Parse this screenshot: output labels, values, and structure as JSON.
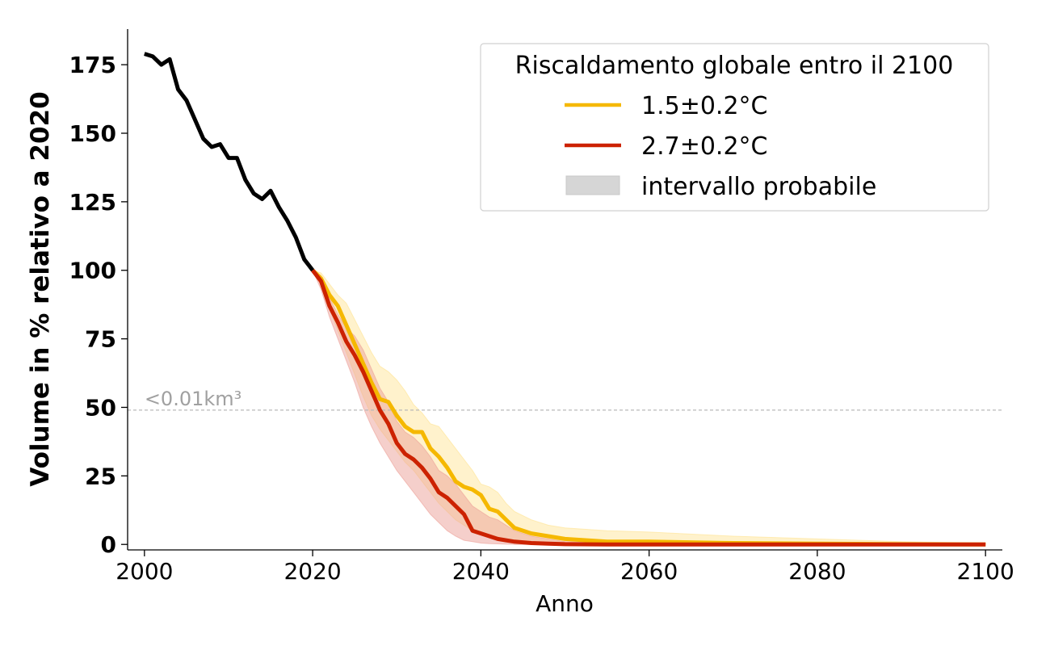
{
  "chart_data": {
    "type": "line",
    "title": "",
    "xlabel": "Anno",
    "ylabel": "Volume in % relativo a 2020",
    "xlim": [
      1998,
      2102
    ],
    "ylim": [
      -2,
      188
    ],
    "xticks": [
      2000,
      2020,
      2040,
      2060,
      2080,
      2100
    ],
    "yticks": [
      0,
      25,
      50,
      75,
      100,
      125,
      150,
      175
    ],
    "grid": false,
    "legend": {
      "title": "Riscaldamento globale entro il 2100",
      "placement": "top-right",
      "entries": [
        {
          "label": "1.5±0.2°C",
          "kind": "line",
          "color": "#f5b800"
        },
        {
          "label": "2.7±0.2°C",
          "kind": "line",
          "color": "#cc2200"
        },
        {
          "label": "intervallo probabile",
          "kind": "patch",
          "color": "#d6d6d6"
        }
      ]
    },
    "annotations": [
      {
        "text": "<0.01km³",
        "x": 2000,
        "y": 49,
        "kind": "hline",
        "color": "#b8b8b8"
      }
    ],
    "historical": {
      "color": "#000000",
      "x": [
        2000,
        2001,
        2002,
        2003,
        2004,
        2005,
        2006,
        2007,
        2008,
        2009,
        2010,
        2011,
        2012,
        2013,
        2014,
        2015,
        2016,
        2017,
        2018,
        2019,
        2020
      ],
      "y": [
        179,
        178,
        175,
        177,
        166,
        162,
        155,
        148,
        145,
        146,
        141,
        141,
        133,
        128,
        126,
        129,
        123,
        118,
        112,
        104,
        100
      ]
    },
    "series": [
      {
        "name": "1.5±0.2°C",
        "color": "#f5b800",
        "band_color": "#ffe38f",
        "x": [
          2020,
          2021,
          2022,
          2023,
          2024,
          2025,
          2026,
          2027,
          2028,
          2029,
          2030,
          2031,
          2032,
          2033,
          2034,
          2035,
          2036,
          2037,
          2038,
          2039,
          2040,
          2041,
          2042,
          2043,
          2044,
          2046,
          2048,
          2050,
          2055,
          2060,
          2070,
          2080,
          2090,
          2100
        ],
        "y": [
          100,
          97,
          91,
          87,
          80,
          73,
          66,
          59,
          53,
          52,
          47,
          43,
          41,
          41,
          35,
          32,
          28,
          23,
          21,
          20,
          18,
          13,
          12,
          9,
          6,
          4,
          3,
          2,
          1,
          1,
          0.5,
          0.3,
          0.1,
          0
        ],
        "lower": [
          100,
          95,
          86,
          78,
          70,
          62,
          54,
          47,
          42,
          38,
          34,
          30,
          27,
          23,
          19,
          15,
          12,
          9,
          7,
          5,
          4,
          3,
          2,
          1,
          1,
          0.5,
          0.3,
          0.2,
          0.1,
          0,
          0,
          0,
          0,
          0
        ],
        "upper": [
          100,
          99,
          95,
          91,
          88,
          82,
          76,
          70,
          65,
          63,
          60,
          56,
          51,
          48,
          44,
          43,
          39,
          35,
          31,
          27,
          22,
          21,
          19,
          15,
          12,
          9,
          7,
          6,
          5,
          4.5,
          3,
          2,
          1,
          0.5
        ]
      },
      {
        "name": "2.7±0.2°C",
        "color": "#cc2200",
        "band_color": "#eca098",
        "x": [
          2020,
          2021,
          2022,
          2023,
          2024,
          2025,
          2026,
          2027,
          2028,
          2029,
          2030,
          2031,
          2032,
          2033,
          2034,
          2035,
          2036,
          2037,
          2038,
          2039,
          2040,
          2041,
          2042,
          2043,
          2044,
          2046,
          2048,
          2050,
          2055,
          2060,
          2070,
          2080,
          2090,
          2100
        ],
        "y": [
          100,
          96,
          87,
          81,
          74,
          69,
          63,
          56,
          49,
          44,
          37,
          33,
          31,
          28,
          24,
          19,
          17,
          14,
          11,
          5,
          4,
          3,
          2,
          1.5,
          1,
          0.5,
          0.3,
          0.1,
          0,
          0,
          0,
          0,
          0,
          0
        ],
        "lower": [
          100,
          93,
          83,
          75,
          67,
          59,
          50,
          43,
          37,
          32,
          27,
          23,
          19,
          15,
          11,
          8,
          5,
          3,
          1.5,
          1,
          0.5,
          0.3,
          0.2,
          0.1,
          0,
          0,
          0,
          0,
          0,
          0,
          0,
          0,
          0,
          0
        ],
        "upper": [
          100,
          98,
          90,
          84,
          79,
          76,
          71,
          64,
          57,
          52,
          45,
          41,
          39,
          36,
          32,
          27,
          25,
          22,
          18,
          14,
          12,
          10,
          9,
          7,
          5,
          3,
          2,
          1,
          0.5,
          0.2,
          0.1,
          0,
          0,
          0
        ]
      }
    ]
  }
}
